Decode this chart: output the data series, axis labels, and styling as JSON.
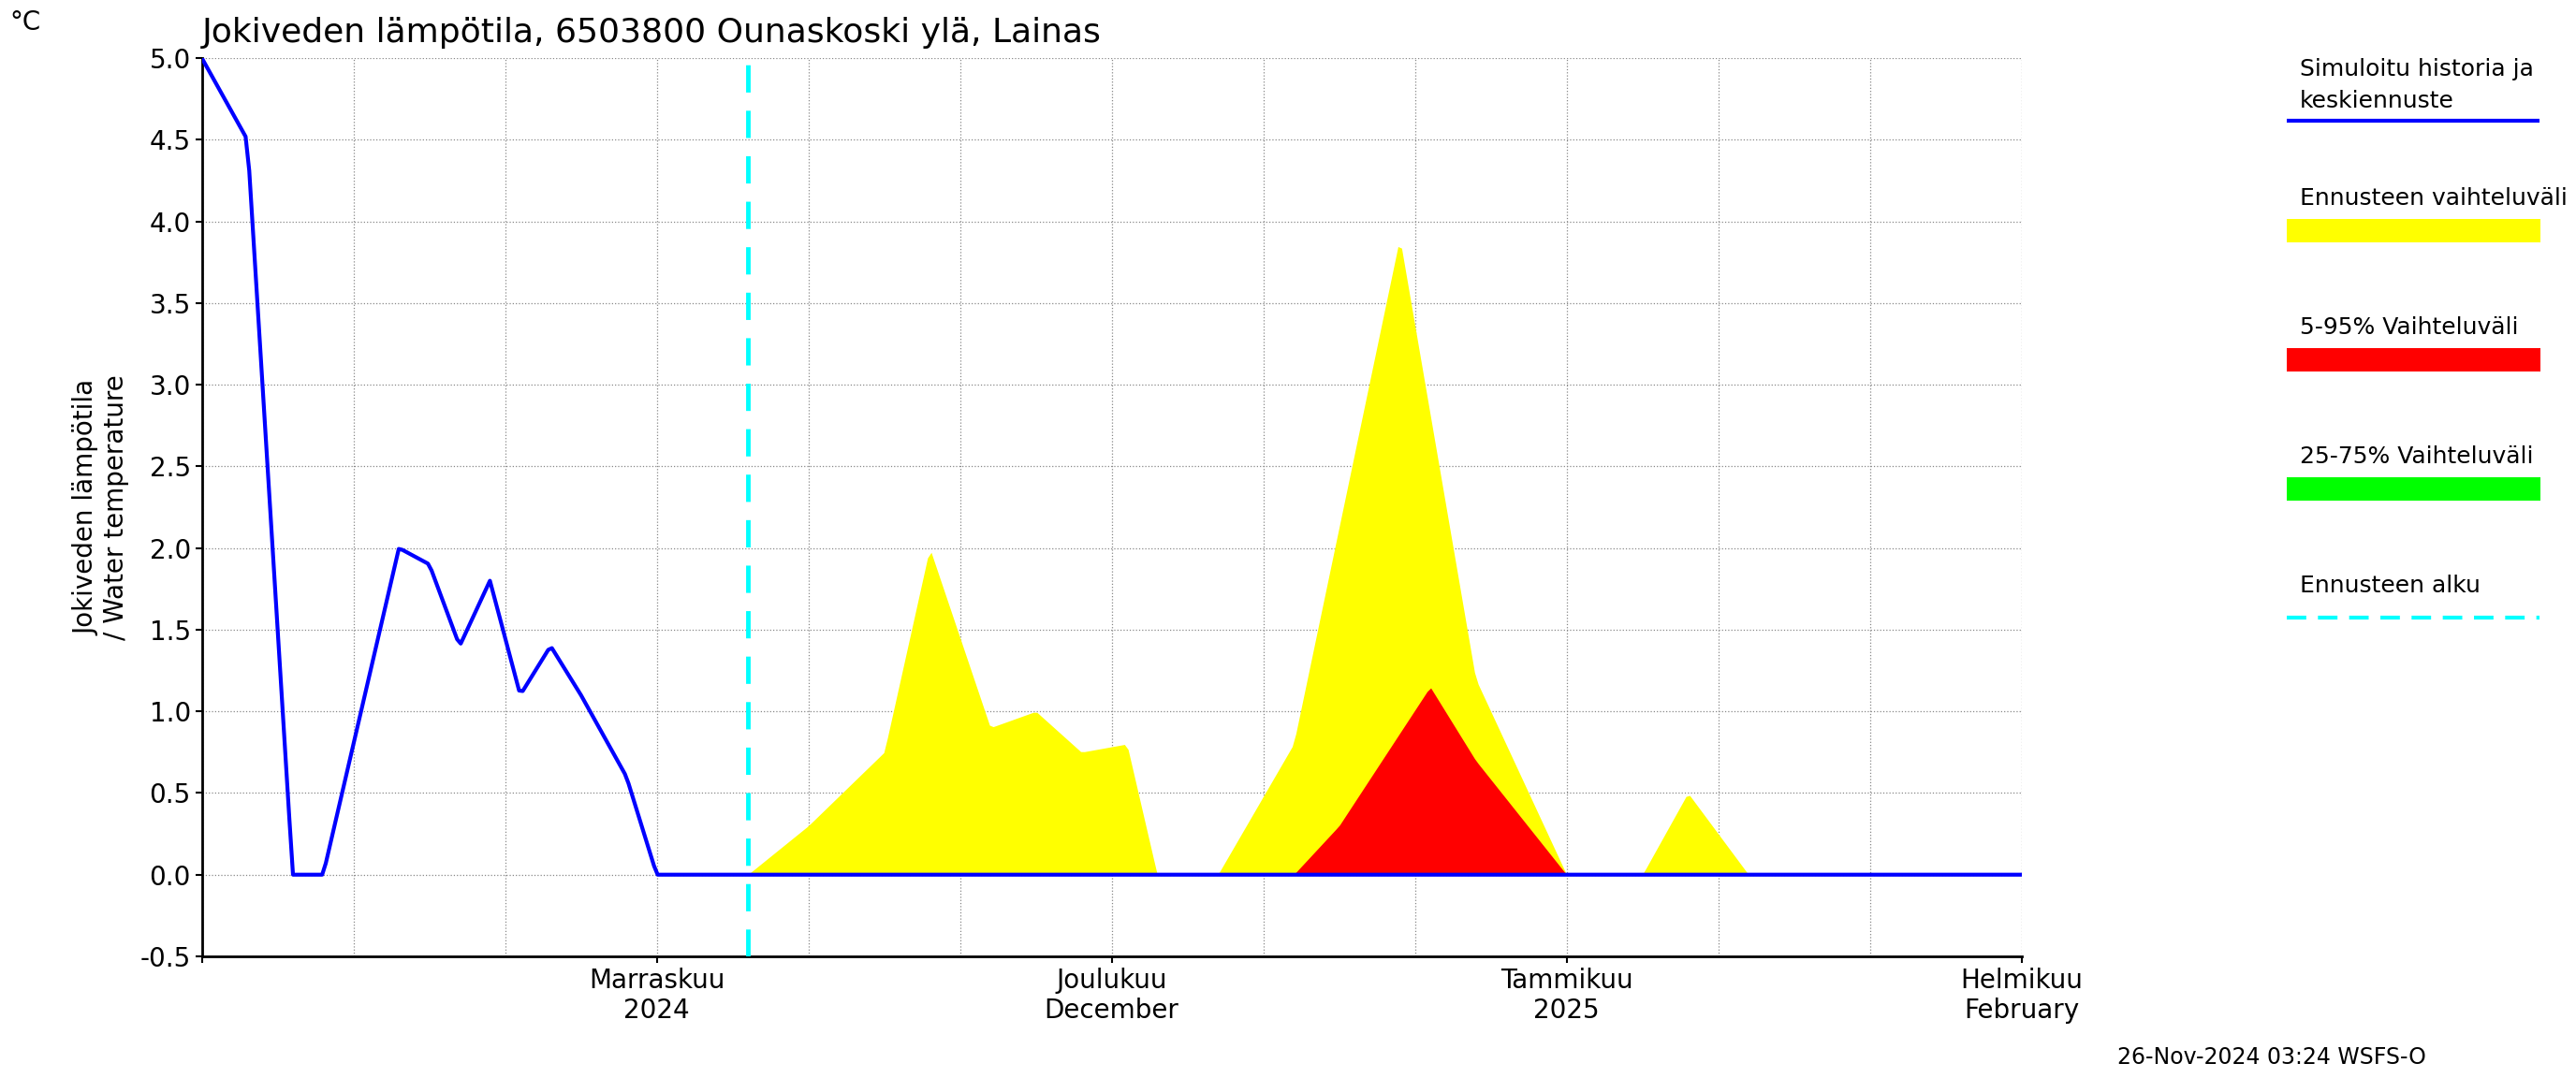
{
  "title": "Jokiveden lämpötila, 6503800 Ounaskoski ylä, Lainas",
  "ylabel": "Jokiveden lämpötila\n/ Water temperature",
  "yunit": "°C",
  "ylim": [
    -0.5,
    5.0
  ],
  "xlim": [
    0,
    120
  ],
  "ytick_major": 0.5,
  "ennuste_alku_num": 36,
  "x_tick_positions": [
    0,
    30,
    60,
    90,
    120
  ],
  "x_tick_labels": [
    "",
    "Marraskuu\n2024",
    "Joulukuu\nDecember",
    "Tammikuu\n2025",
    "Helmikuu\nFebruary"
  ],
  "timestamp": "26-Nov-2024 03:24 WSFS-O",
  "background_color": "#ffffff",
  "blue_line_color": "#0000ff",
  "yellow_fill_color": "#ffff00",
  "red_fill_color": "#ff0000",
  "green_fill_color": "#00ff00",
  "cyan_line_color": "#00ffff",
  "legend_labels": [
    "Simuloitu historia ja\nkeskiennuste",
    "Ennusteen vaihteluväli",
    "5-95% Vaihteluväli",
    "25-75% Vaihteluväli",
    "Ennusteen alku"
  ]
}
